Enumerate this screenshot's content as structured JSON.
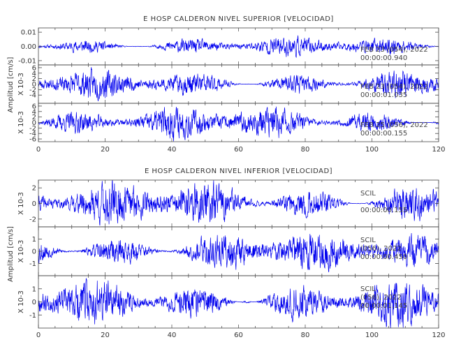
{
  "colors": {
    "trace": "#0000ee",
    "axis": "#444444",
    "text": "#333333",
    "background": "#ffffff"
  },
  "chart_data": [
    {
      "type": "line",
      "title": "E HOSP CALDERON NIVEL SUPERIOR [VELOCIDAD]",
      "ylabel": "Amplitud [cm/s]",
      "xlabel": "",
      "xlim": [
        0,
        120
      ],
      "x_ticks": [
        "0",
        "20",
        "40",
        "60",
        "80",
        "100",
        "120"
      ],
      "grid": false,
      "series": [
        {
          "ylim": [
            -0.013,
            0.013
          ],
          "y_ticks": [
            "0.01",
            "0.00",
            "-0.01"
          ],
          "multiplier": "",
          "amplitude": 0.0055,
          "seed": 11,
          "annotation": [
            "",
            "FEB 23 (054), 2022",
            "00:00:00.940"
          ]
        },
        {
          "ylim": [
            -7,
            7
          ],
          "y_ticks": [
            "6",
            "4",
            "2",
            "0",
            "-2",
            "-4"
          ],
          "multiplier": "X 10-3",
          "amplitude": 4.2,
          "seed": 23,
          "annotation": [
            "",
            "FEB 23 (054), 2022",
            "00:00:01.035"
          ]
        },
        {
          "ylim": [
            -7,
            7
          ],
          "y_ticks": [
            "6",
            "4",
            "2",
            "0",
            "-2",
            "-4",
            "-6"
          ],
          "multiplier": "X 10-3",
          "amplitude": 4.8,
          "seed": 37,
          "annotation": [
            "",
            "FEB 25 (056), 2022",
            "00:00:00.155"
          ]
        }
      ]
    },
    {
      "type": "line",
      "title": "E HOSP CALDERON NIVEL INFERIOR [VELOCIDAD]",
      "ylabel": "Amplitud [cm/s]",
      "xlabel": "",
      "xlim": [
        0,
        120
      ],
      "x_ticks": [
        "0",
        "20",
        "40",
        "60",
        "80",
        "100",
        "120"
      ],
      "grid": false,
      "series": [
        {
          "ylim": [
            -3,
            3
          ],
          "y_ticks": [
            "2",
            "0",
            "-2"
          ],
          "multiplier": "X 10-3",
          "amplitude": 2.3,
          "seed": 41,
          "annotation": [
            "SCIL",
            "",
            "00:00:00.155"
          ]
        },
        {
          "ylim": [
            -2,
            2
          ],
          "y_ticks": [
            "1",
            "0",
            "-1"
          ],
          "multiplier": "X 10-3",
          "amplitude": 1.4,
          "seed": 53,
          "annotation": [
            "SCIL",
            "(056), 2022",
            "00:00:00.450"
          ]
        },
        {
          "ylim": [
            -2,
            2
          ],
          "y_ticks": [
            "1",
            "0",
            "-1"
          ],
          "multiplier": "X 10-3",
          "amplitude": 1.4,
          "seed": 67,
          "annotation": [
            "SCIL",
            "(056), 2022",
            "00:00:01.145"
          ]
        }
      ]
    }
  ]
}
